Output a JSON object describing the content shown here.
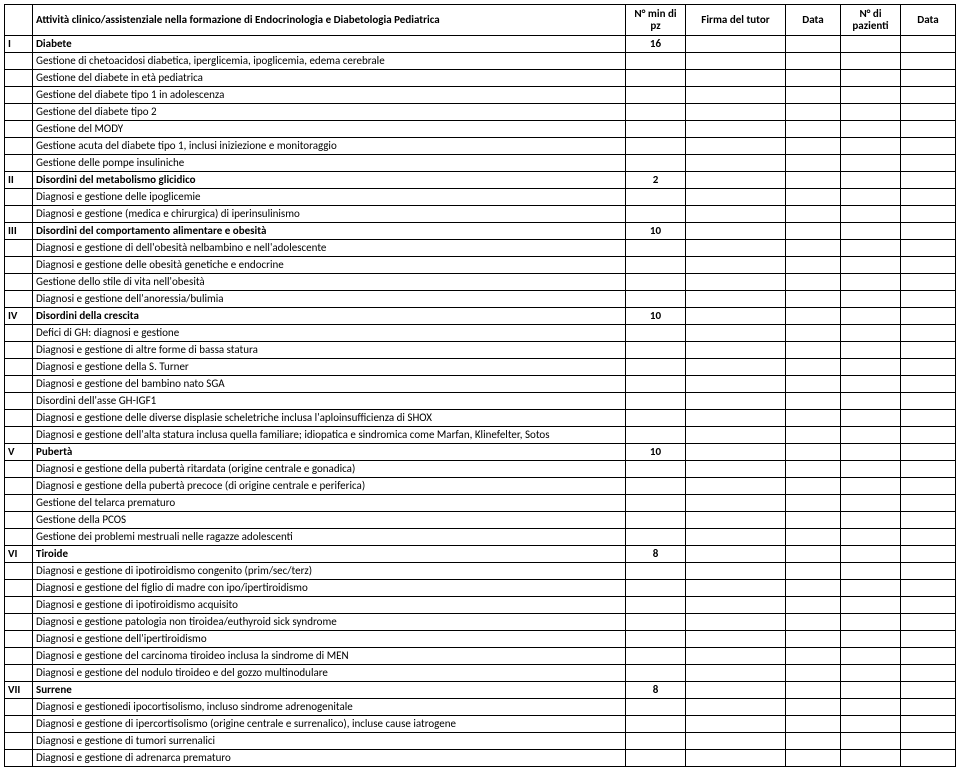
{
  "headers": {
    "col_num": "",
    "col_activity": "Attività clinico/assistenziale nella formazione di Endocrinologia e  Diabetologia Pediatrica",
    "col_min": "N° min di pz",
    "col_firma1": "Firma del tutor",
    "col_data1": "Data",
    "col_npaz": "N° di pazienti",
    "col_data2": "Data"
  },
  "sections": [
    {
      "roman": "I",
      "title": "Diabete",
      "min": "16",
      "rows": [
        "Gestione di chetoacidosi diabetica, iperglicemia, ipoglicemia, edema cerebrale",
        "Gestione del diabete in età pediatrica",
        "Gestione del diabete tipo 1 in adolescenza",
        "Gestione del diabete tipo 2",
        "Gestione del MODY",
        "Gestione acuta del diabete tipo 1, inclusi iniziezione e monitoraggio",
        "Gestione delle pompe insuliniche"
      ]
    },
    {
      "roman": "II",
      "title": "Disordini del metabolismo glicidico",
      "min": "2",
      "rows": [
        "Diagnosi e gestione delle ipoglicemie",
        "Diagnosi e gestione (medica e chirurgica) di iperinsulinismo"
      ]
    },
    {
      "roman": "III",
      "title": "Disordini del comportamento alimentare e obesità",
      "min": "10",
      "rows": [
        "Diagnosi  e gestione di dell'obesità nelbambino e nell'adolescente",
        "Diagnosi e gestione delle obesità genetiche e endocrine",
        "Gestione dello stile di vita nell'obesità",
        "Diagnosi e gestione dell'anoressia/bulimia"
      ]
    },
    {
      "roman": "IV",
      "title": "Disordini della crescita",
      "min": "10",
      "rows": [
        "Defici di GH: diagnosi e gestione",
        "Diagnosi e gestione di altre forme di bassa statura",
        "Diagnosi e gestione della S. Turner",
        "Diagnosi e gestione del bambino nato SGA",
        "Disordini dell'asse GH-IGF1",
        "Diagnosi e gestione delle diverse  displasie scheletriche inclusa l'aploinsufficienza di SHOX",
        "Diagnosi e gestione dell'alta statura inclusa quella familiare; idiopatica e sindromica come Marfan, Klinefelter, Sotos"
      ]
    },
    {
      "roman": "V",
      "title": "Pubertà",
      "min": "10",
      "rows": [
        "Diagnosi e gestione della pubertà ritardata (origine centrale e gonadica)",
        "Diagnosi e gestione della pubertà precoce (di origine centrale e periferica)",
        "Gestione del telarca prematuro",
        "Gestione della PCOS",
        "Gestione dei problemi mestruali nelle ragazze adolescenti"
      ]
    },
    {
      "roman": "VI",
      "title": "Tiroide",
      "min": "8",
      "rows": [
        "Diagnosi  e gestione di ipotiroidismo congenito (prim/sec/terz)",
        "Diagnosi e gestione del figlio di  madre con ipo/ipertiroidismo",
        "Diagnosi e gestione di ipotiroidismo acquisito",
        "Diagnosi e gestione patologia non tiroidea/euthyroid sick syndrome",
        "Diagnosi e gestione dell'ipertiroidismo",
        "Diagnosi e gestione del carcinoma tiroideo inclusa la sindrome di MEN",
        "Diagnosi e gestione del nodulo tiroideo e del gozzo multinodulare"
      ]
    },
    {
      "roman": "VII",
      "title": "Surrene",
      "min": "8",
      "rows": [
        "Diagnosi e gestionedi ipocortisolismo, incluso sindrome adrenogenitale",
        "Diagnosi e gestione di  ipercortisolismo (origine centrale e surrenalico), incluse cause iatrogene",
        "Diagnosi e gestione di tumori surrenalici",
        "Diagnosi e gestione di adrenarca prematuro"
      ]
    }
  ]
}
